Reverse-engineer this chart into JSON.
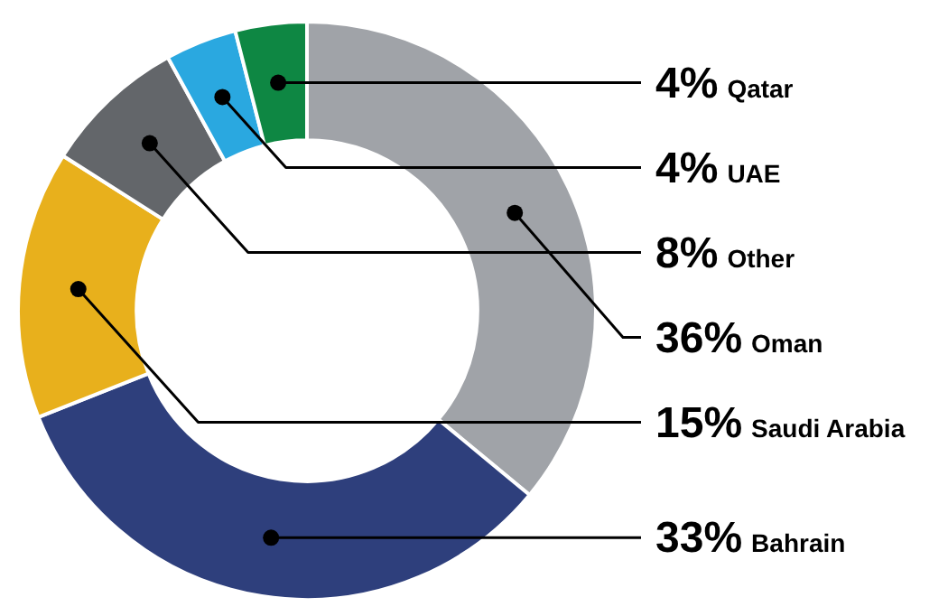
{
  "chart_data": {
    "type": "donut",
    "categories": [
      "Oman",
      "Bahrain",
      "Saudi Arabia",
      "Other",
      "UAE",
      "Qatar"
    ],
    "values": [
      36,
      33,
      15,
      8,
      4,
      4
    ],
    "colors": [
      "#a0a3a8",
      "#2e3f7c",
      "#e8b01c",
      "#63666a",
      "#2aa8e0",
      "#0e8743"
    ],
    "value_labels": [
      "36%",
      "33%",
      "15%",
      "8%",
      "4%",
      "4%"
    ]
  }
}
